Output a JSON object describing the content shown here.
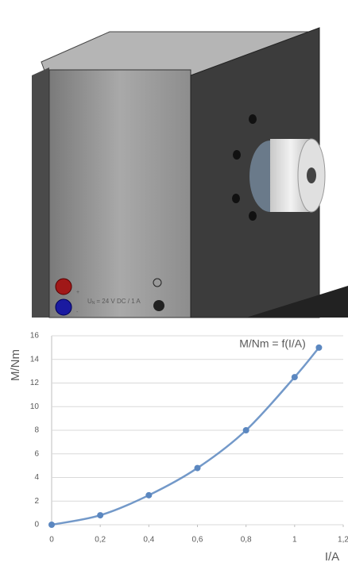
{
  "device": {
    "label_main": "U",
    "label_sub": "N",
    "label_rest": "= 24 V DC / 1 A",
    "plus": "+",
    "minus": "-"
  },
  "chart_data": {
    "type": "line",
    "title": "M/Nm = f(I/A)",
    "x_label": "I/A",
    "y_label": "M/Nm",
    "x": [
      0,
      0.2,
      0.4,
      0.6,
      0.8,
      1,
      1.1
    ],
    "values": [
      0,
      0.8,
      2.5,
      4.8,
      8,
      12.5,
      15
    ],
    "color": "#5b87c0",
    "xlim": [
      0,
      1.2
    ],
    "xticks": [
      0,
      {
        "value": 0.2,
        "label": "0,2"
      },
      {
        "value": 0.4,
        "label": "0,4"
      },
      {
        "value": 0.6,
        "label": "0,6"
      },
      {
        "value": 0.8,
        "label": "0,8"
      },
      1,
      {
        "value": 1.2,
        "label": "1,2"
      }
    ],
    "ylim": [
      0,
      16
    ],
    "yticks": [
      0,
      2,
      4,
      6,
      8,
      10,
      12,
      14,
      16
    ],
    "grid": true
  }
}
